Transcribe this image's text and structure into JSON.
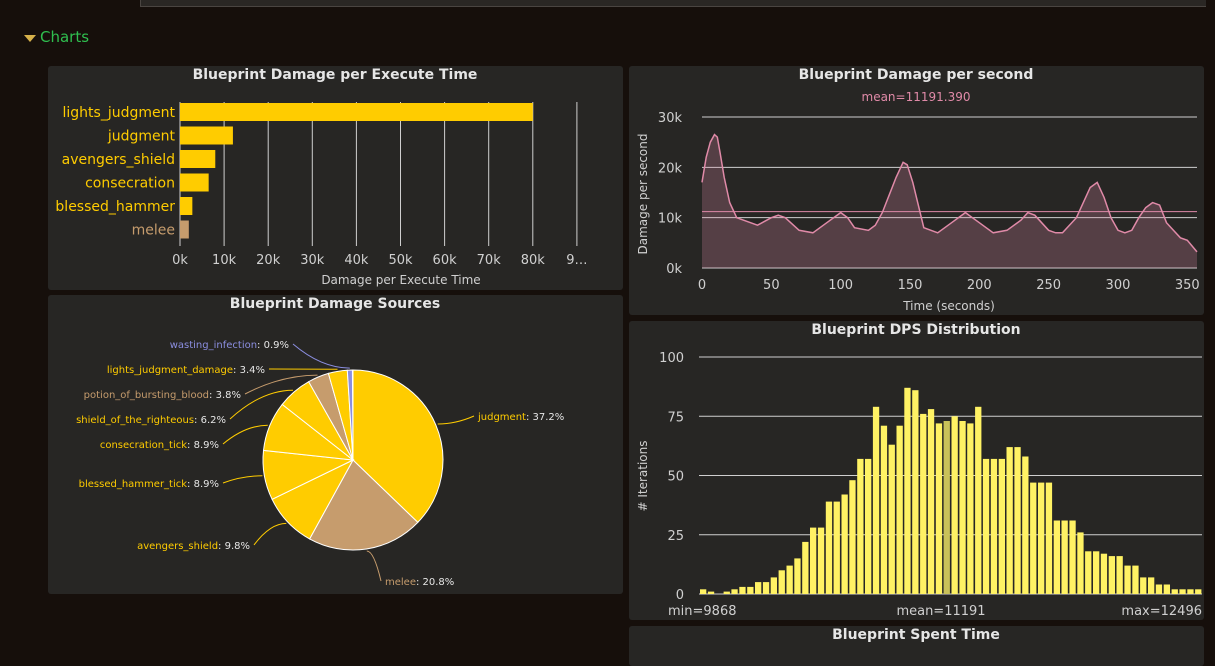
{
  "section": {
    "title": "Charts"
  },
  "colors": {
    "yellow": "#ffcc00",
    "tan": "#c69c6d",
    "purple": "#8b8ee0",
    "pink": "#e08aa8",
    "hist": "#fff264",
    "hist_mean": "#c9c159",
    "grid": "#cfcfcf"
  },
  "chart_data": [
    {
      "id": "damage_per_execute",
      "type": "bar",
      "orientation": "horizontal",
      "title": "Blueprint Damage per Execute Time",
      "xlabel": "Damage per Execute Time",
      "categories": [
        "lights_judgment",
        "judgment",
        "avengers_shield",
        "consecration",
        "blessed_hammer",
        "melee"
      ],
      "values": [
        80000,
        12000,
        8000,
        6500,
        2800,
        2000
      ],
      "bar_colors": [
        "#ffcc00",
        "#ffcc00",
        "#ffcc00",
        "#ffcc00",
        "#ffcc00",
        "#c69c6d"
      ],
      "xlim": [
        0,
        90000
      ],
      "xticks": [
        "0k",
        "10k",
        "20k",
        "30k",
        "40k",
        "50k",
        "60k",
        "70k",
        "80k",
        "9…"
      ],
      "grid": true
    },
    {
      "id": "dps_timeline",
      "type": "area",
      "title": "Blueprint Damage per second",
      "subtitle": "mean=11191.390",
      "xlabel": "Time (seconds)",
      "ylabel": "Damage per second",
      "xlim": [
        0,
        357
      ],
      "ylim": [
        0,
        30000
      ],
      "xticks": [
        "0",
        "50",
        "100",
        "150",
        "200",
        "250",
        "300",
        "350"
      ],
      "yticks": [
        "0k",
        "10k",
        "20k",
        "30k"
      ],
      "mean": 11191.39,
      "x": [
        0,
        3,
        6,
        9,
        11,
        13,
        16,
        20,
        25,
        30,
        40,
        50,
        55,
        60,
        70,
        80,
        90,
        100,
        105,
        110,
        120,
        125,
        130,
        140,
        145,
        148,
        152,
        160,
        170,
        180,
        190,
        195,
        200,
        210,
        220,
        230,
        235,
        240,
        250,
        255,
        260,
        270,
        280,
        285,
        290,
        295,
        300,
        305,
        310,
        315,
        320,
        325,
        330,
        335,
        340,
        345,
        350,
        357
      ],
      "y": [
        17000,
        22000,
        25000,
        26500,
        26000,
        23000,
        18000,
        13000,
        10000,
        9500,
        8500,
        10000,
        10500,
        10000,
        7500,
        7000,
        9000,
        11000,
        10000,
        8000,
        7500,
        8500,
        11000,
        18000,
        21000,
        20500,
        17000,
        8000,
        7000,
        9000,
        11000,
        10000,
        9000,
        7000,
        7500,
        9500,
        11000,
        10500,
        7500,
        7000,
        7000,
        10000,
        16000,
        17000,
        14000,
        10000,
        7500,
        7000,
        7500,
        10000,
        12000,
        13000,
        12500,
        9000,
        7500,
        6000,
        5500,
        3200
      ],
      "grid": true
    },
    {
      "id": "damage_sources",
      "type": "pie",
      "title": "Blueprint Damage Sources",
      "slices": [
        {
          "label": "judgment",
          "value": "37.2%",
          "pct": 37.2,
          "color": "#ffcc00"
        },
        {
          "label": "melee",
          "value": "20.8%",
          "pct": 20.8,
          "color": "#c69c6d"
        },
        {
          "label": "avengers_shield",
          "value": "9.8%",
          "pct": 9.8,
          "color": "#ffcc00"
        },
        {
          "label": "blessed_hammer_tick",
          "value": "8.9%",
          "pct": 8.9,
          "color": "#ffcc00"
        },
        {
          "label": "consecration_tick",
          "value": "8.9%",
          "pct": 8.9,
          "color": "#ffcc00"
        },
        {
          "label": "shield_of_the_righteous",
          "value": "6.2%",
          "pct": 6.2,
          "color": "#ffcc00"
        },
        {
          "label": "potion_of_bursting_blood",
          "value": "3.8%",
          "pct": 3.8,
          "color": "#c69c6d"
        },
        {
          "label": "lights_judgment_damage",
          "value": "3.4%",
          "pct": 3.4,
          "color": "#ffcc00"
        },
        {
          "label": "wasting_infection",
          "value": "0.9%",
          "pct": 0.9,
          "color": "#8b8ee0"
        }
      ]
    },
    {
      "id": "dps_distribution",
      "type": "bar",
      "title": "Blueprint DPS Distribution",
      "ylabel": "# Iterations",
      "ylim": [
        0,
        100
      ],
      "yticks": [
        "0",
        "25",
        "50",
        "75",
        "100"
      ],
      "min_label": "min=9868",
      "mean_label": "mean=11191",
      "max_label": "max=12496",
      "mean_bin": 31,
      "values": [
        2,
        1,
        0,
        1,
        2,
        3,
        3,
        5,
        5,
        7,
        10,
        12,
        15,
        22,
        28,
        28,
        39,
        39,
        42,
        48,
        57,
        57,
        79,
        71,
        63,
        71,
        87,
        86,
        76,
        78,
        72,
        73,
        75,
        73,
        72,
        79,
        57,
        57,
        57,
        62,
        62,
        58,
        47,
        47,
        47,
        31,
        31,
        31,
        26,
        18,
        18,
        17,
        16,
        16,
        12,
        12,
        7,
        7,
        4,
        4,
        2,
        2,
        2,
        2
      ]
    },
    {
      "id": "spent_time",
      "type": "pie",
      "title": "Blueprint Spent Time"
    }
  ]
}
